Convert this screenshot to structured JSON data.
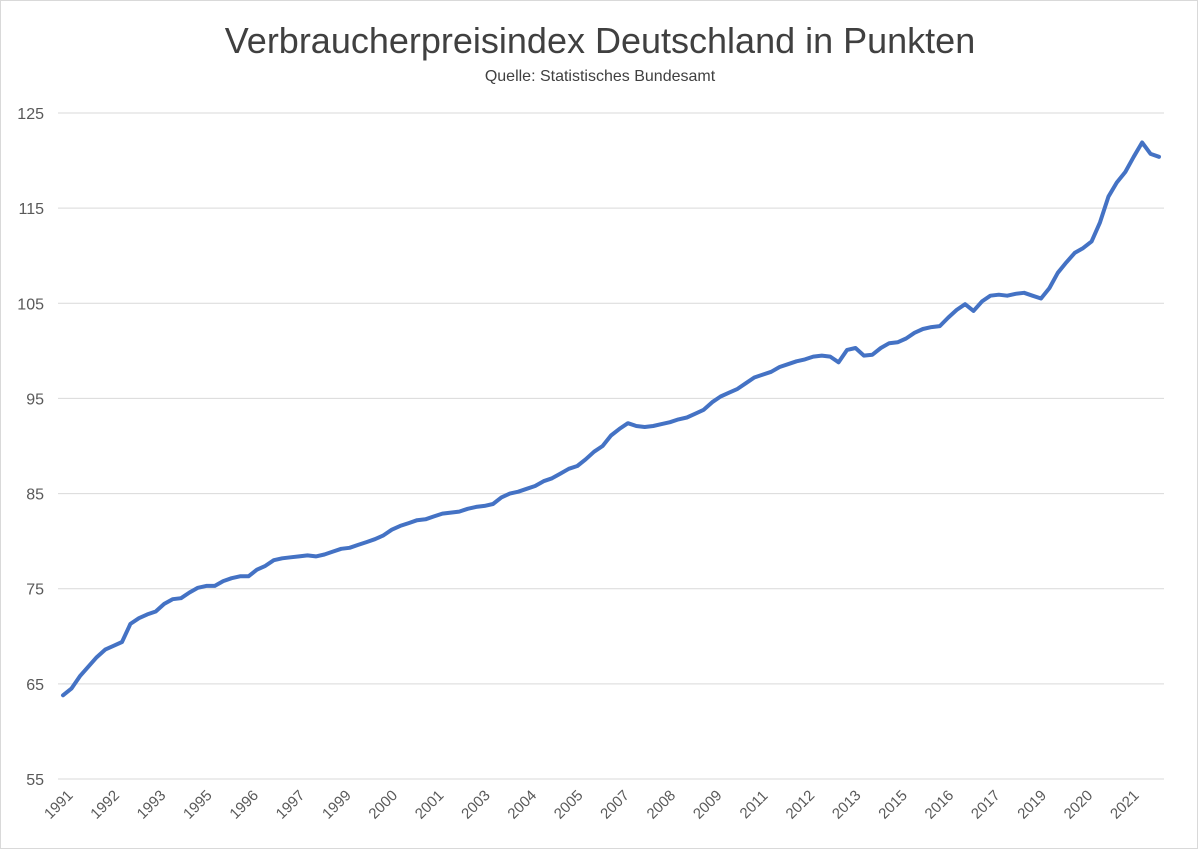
{
  "chart_data": {
    "type": "line",
    "title": "Verbraucherpreisindex Deutschland in Punkten",
    "subtitle": "Quelle: Statistisches Bundesamt",
    "ylim": [
      55,
      125
    ],
    "y_ticks": [
      55,
      65,
      75,
      85,
      95,
      105,
      115,
      125
    ],
    "x_tick_labels": [
      "1991",
      "1992",
      "1993",
      "1995",
      "1996",
      "1997",
      "1999",
      "2000",
      "2001",
      "2003",
      "2004",
      "2005",
      "2007",
      "2008",
      "2009",
      "2011",
      "2012",
      "2013",
      "2015",
      "2016",
      "2017",
      "2019",
      "2020",
      "2021"
    ],
    "grid": true,
    "legend": "none",
    "colors": {
      "line": "#4472C4",
      "grid": "#d9d9d9",
      "text": "#595959"
    },
    "series": [
      {
        "x": [
          1991.0,
          1991.25,
          1991.5,
          1991.75,
          1992.0,
          1992.25,
          1992.5,
          1992.75,
          1993.0,
          1993.25,
          1993.5,
          1993.75,
          1994.0,
          1994.25,
          1994.5,
          1994.75,
          1995.0,
          1995.25,
          1995.5,
          1995.75,
          1996.0,
          1996.25,
          1996.5,
          1996.75,
          1997.0,
          1997.25,
          1997.5,
          1997.75,
          1998.0,
          1998.25,
          1998.5,
          1998.75,
          1999.0,
          1999.25,
          1999.5,
          1999.75,
          2000.0,
          2000.25,
          2000.5,
          2000.75,
          2001.0,
          2001.25,
          2001.5,
          2001.75,
          2002.0,
          2002.25,
          2002.5,
          2002.75,
          2003.0,
          2003.25,
          2003.5,
          2003.75,
          2004.0,
          2004.25,
          2004.5,
          2004.75,
          2005.0,
          2005.25,
          2005.5,
          2005.75,
          2006.0,
          2006.25,
          2006.5,
          2006.75,
          2007.0,
          2007.25,
          2007.5,
          2007.75,
          2008.0,
          2008.25,
          2008.5,
          2008.75,
          2009.0,
          2009.25,
          2009.5,
          2009.75,
          2010.0,
          2010.25,
          2010.5,
          2010.75,
          2011.0,
          2011.25,
          2011.5,
          2011.75,
          2012.0,
          2012.25,
          2012.5,
          2012.75,
          2013.0,
          2013.25,
          2013.5,
          2013.75,
          2014.0,
          2014.25,
          2014.5,
          2014.75,
          2015.0,
          2015.25,
          2015.5,
          2015.75,
          2016.0,
          2016.25,
          2016.5,
          2016.75,
          2017.0,
          2017.25,
          2017.5,
          2017.75,
          2018.0,
          2018.25,
          2018.5,
          2018.75,
          2019.0,
          2019.25,
          2019.5,
          2019.75,
          2020.0,
          2020.25,
          2020.5,
          2020.75,
          2021.0,
          2021.25,
          2021.5,
          2021.75,
          2022.0,
          2022.25,
          2022.5,
          2022.75,
          2023.0,
          2023.25,
          2023.5
        ],
        "values": [
          63.8,
          64.5,
          65.8,
          66.8,
          67.8,
          68.6,
          69.0,
          69.4,
          71.3,
          71.9,
          72.3,
          72.6,
          73.4,
          73.9,
          74.0,
          74.6,
          75.1,
          75.3,
          75.3,
          75.8,
          76.1,
          76.3,
          76.3,
          77.0,
          77.4,
          78.0,
          78.2,
          78.3,
          78.4,
          78.5,
          78.4,
          78.6,
          78.9,
          79.2,
          79.3,
          79.6,
          79.9,
          80.2,
          80.6,
          81.2,
          81.6,
          81.9,
          82.2,
          82.3,
          82.6,
          82.9,
          83.0,
          83.1,
          83.4,
          83.6,
          83.7,
          83.9,
          84.6,
          85.0,
          85.2,
          85.5,
          85.8,
          86.3,
          86.6,
          87.1,
          87.6,
          87.9,
          88.6,
          89.4,
          90.0,
          91.1,
          91.8,
          92.4,
          92.1,
          92.0,
          92.1,
          92.3,
          92.5,
          92.8,
          93.0,
          93.4,
          93.8,
          94.6,
          95.2,
          95.6,
          96.0,
          96.6,
          97.2,
          97.5,
          97.8,
          98.3,
          98.6,
          98.9,
          99.1,
          99.4,
          99.5,
          99.4,
          98.8,
          100.1,
          100.3,
          99.5,
          99.6,
          100.3,
          100.8,
          100.9,
          101.3,
          101.9,
          102.3,
          102.5,
          102.6,
          103.5,
          104.3,
          104.9,
          104.2,
          105.2,
          105.8,
          105.9,
          105.8,
          106.0,
          106.1,
          105.8,
          105.5,
          106.6,
          108.2,
          109.3,
          110.3,
          110.8,
          111.5,
          113.5,
          116.2,
          117.7,
          118.8,
          120.4,
          121.9,
          120.7,
          120.4
        ],
        "values_note_omitted": true
      }
    ]
  }
}
